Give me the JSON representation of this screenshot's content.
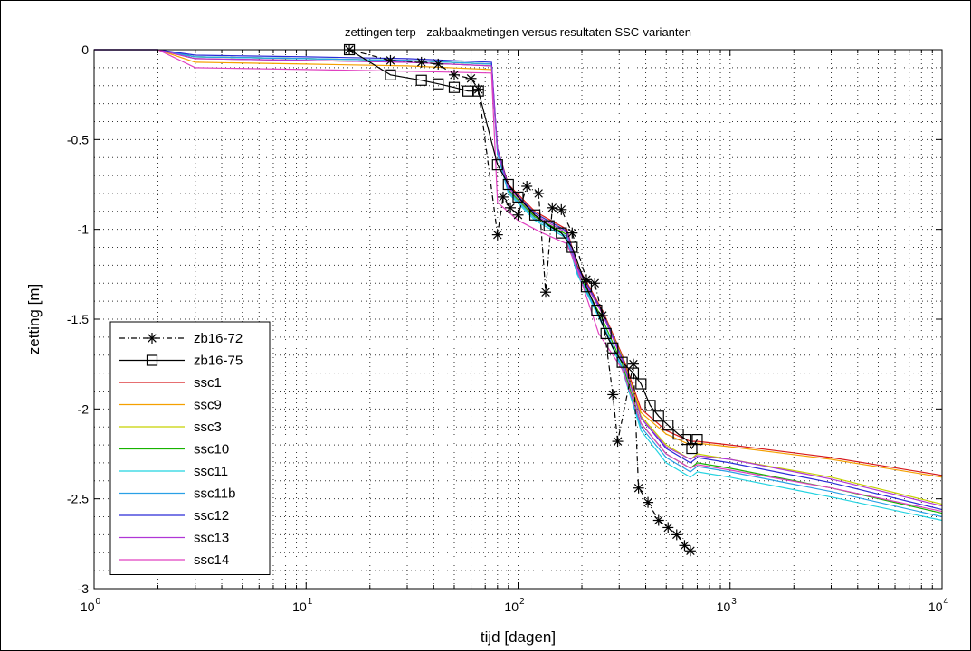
{
  "chart_data": {
    "type": "line",
    "title": "zettingen terp - zakbaakmetingen versus resultaten SSC-varianten",
    "xlabel": "tijd [dagen]",
    "ylabel": "zetting [m]",
    "xscale": "log",
    "xlim": [
      1,
      10000
    ],
    "ylim": [
      -3,
      0
    ],
    "grid": true,
    "legend": "bottom-left",
    "x_ticks": [
      {
        "base": "10",
        "exp": "0"
      },
      {
        "base": "10",
        "exp": "1"
      },
      {
        "base": "10",
        "exp": "2"
      },
      {
        "base": "10",
        "exp": "3"
      },
      {
        "base": "10",
        "exp": "4"
      }
    ],
    "y_ticks": [
      "0",
      "-0.5",
      "-1",
      "-1.5",
      "-2",
      "-2.5",
      "-3"
    ],
    "series": [
      {
        "name": "zb16-72",
        "color": "#000000",
        "marker": "star",
        "dash": "dashdot",
        "points": [
          [
            16,
            0
          ],
          [
            25,
            -0.06
          ],
          [
            35,
            -0.07
          ],
          [
            42,
            -0.08
          ],
          [
            50,
            -0.14
          ],
          [
            60,
            -0.16
          ],
          [
            65,
            -0.22
          ],
          [
            80,
            -1.03
          ],
          [
            85,
            -0.82
          ],
          [
            92,
            -0.88
          ],
          [
            100,
            -0.92
          ],
          [
            110,
            -0.76
          ],
          [
            125,
            -0.8
          ],
          [
            135,
            -1.35
          ],
          [
            145,
            -0.88
          ],
          [
            160,
            -0.89
          ],
          [
            180,
            -1.02
          ],
          [
            210,
            -1.28
          ],
          [
            230,
            -1.3
          ],
          [
            250,
            -1.48
          ],
          [
            280,
            -1.92
          ],
          [
            295,
            -2.18
          ],
          [
            350,
            -1.75
          ],
          [
            370,
            -2.44
          ],
          [
            410,
            -2.52
          ],
          [
            460,
            -2.62
          ],
          [
            510,
            -2.66
          ],
          [
            560,
            -2.7
          ],
          [
            610,
            -2.76
          ],
          [
            650,
            -2.79
          ]
        ]
      },
      {
        "name": "zb16-75",
        "color": "#000000",
        "marker": "square",
        "dash": "solid",
        "points": [
          [
            16,
            0
          ],
          [
            25,
            -0.14
          ],
          [
            35,
            -0.17
          ],
          [
            42,
            -0.19
          ],
          [
            50,
            -0.21
          ],
          [
            58,
            -0.23
          ],
          [
            65,
            -0.23
          ],
          [
            80,
            -0.64
          ],
          [
            90,
            -0.75
          ],
          [
            100,
            -0.82
          ],
          [
            120,
            -0.92
          ],
          [
            140,
            -0.98
          ],
          [
            160,
            -1.02
          ],
          [
            180,
            -1.1
          ],
          [
            210,
            -1.32
          ],
          [
            235,
            -1.45
          ],
          [
            260,
            -1.58
          ],
          [
            280,
            -1.66
          ],
          [
            310,
            -1.74
          ],
          [
            350,
            -1.8
          ],
          [
            380,
            -1.86
          ],
          [
            420,
            -1.98
          ],
          [
            460,
            -2.04
          ],
          [
            510,
            -2.09
          ],
          [
            570,
            -2.14
          ],
          [
            620,
            -2.17
          ],
          [
            660,
            -2.22
          ],
          [
            700,
            -2.17
          ]
        ]
      },
      {
        "name": "ssc1",
        "color": "#d7191c",
        "dash": "solid",
        "points": [
          [
            1,
            0
          ],
          [
            2,
            0
          ],
          [
            3,
            -0.05
          ],
          [
            10,
            -0.06
          ],
          [
            30,
            -0.07
          ],
          [
            75,
            -0.09
          ],
          [
            80,
            -0.55
          ],
          [
            90,
            -0.75
          ],
          [
            120,
            -0.9
          ],
          [
            170,
            -1.0
          ],
          [
            190,
            -1.2
          ],
          [
            250,
            -1.45
          ],
          [
            310,
            -1.7
          ],
          [
            380,
            -2.0
          ],
          [
            500,
            -2.12
          ],
          [
            650,
            -2.18
          ],
          [
            700,
            -2.18
          ],
          [
            1000,
            -2.2
          ],
          [
            3000,
            -2.27
          ],
          [
            10000,
            -2.37
          ]
        ]
      },
      {
        "name": "ssc9",
        "color": "#f5a000",
        "dash": "solid",
        "points": [
          [
            1,
            0
          ],
          [
            2,
            0
          ],
          [
            3,
            -0.07
          ],
          [
            10,
            -0.08
          ],
          [
            30,
            -0.09
          ],
          [
            75,
            -0.11
          ],
          [
            80,
            -0.57
          ],
          [
            90,
            -0.78
          ],
          [
            120,
            -0.93
          ],
          [
            170,
            -1.03
          ],
          [
            190,
            -1.22
          ],
          [
            250,
            -1.47
          ],
          [
            310,
            -1.72
          ],
          [
            380,
            -2.02
          ],
          [
            500,
            -2.14
          ],
          [
            650,
            -2.2
          ],
          [
            700,
            -2.19
          ],
          [
            1000,
            -2.21
          ],
          [
            3000,
            -2.28
          ],
          [
            10000,
            -2.38
          ]
        ]
      },
      {
        "name": "ssc3",
        "color": "#c6d200",
        "dash": "solid",
        "points": [
          [
            1,
            0
          ],
          [
            2,
            0
          ],
          [
            3,
            -0.04
          ],
          [
            10,
            -0.05
          ],
          [
            30,
            -0.06
          ],
          [
            75,
            -0.08
          ],
          [
            80,
            -0.56
          ],
          [
            90,
            -0.76
          ],
          [
            120,
            -0.91
          ],
          [
            170,
            -1.01
          ],
          [
            190,
            -1.21
          ],
          [
            250,
            -1.46
          ],
          [
            310,
            -1.71
          ],
          [
            380,
            -2.04
          ],
          [
            500,
            -2.2
          ],
          [
            650,
            -2.28
          ],
          [
            700,
            -2.25
          ],
          [
            1000,
            -2.28
          ],
          [
            3000,
            -2.38
          ],
          [
            10000,
            -2.53
          ]
        ]
      },
      {
        "name": "ssc10",
        "color": "#17b300",
        "dash": "solid",
        "points": [
          [
            1,
            0
          ],
          [
            2,
            0
          ],
          [
            3,
            -0.04
          ],
          [
            10,
            -0.05
          ],
          [
            30,
            -0.06
          ],
          [
            75,
            -0.08
          ],
          [
            80,
            -0.57
          ],
          [
            90,
            -0.78
          ],
          [
            120,
            -0.93
          ],
          [
            170,
            -1.03
          ],
          [
            190,
            -1.23
          ],
          [
            250,
            -1.5
          ],
          [
            310,
            -1.75
          ],
          [
            380,
            -2.08
          ],
          [
            500,
            -2.25
          ],
          [
            650,
            -2.33
          ],
          [
            700,
            -2.3
          ],
          [
            1000,
            -2.33
          ],
          [
            3000,
            -2.44
          ],
          [
            10000,
            -2.58
          ]
        ]
      },
      {
        "name": "ssc11",
        "color": "#22d3e0",
        "dash": "solid",
        "points": [
          [
            1,
            0
          ],
          [
            2,
            0
          ],
          [
            3,
            -0.04
          ],
          [
            10,
            -0.05
          ],
          [
            30,
            -0.06
          ],
          [
            75,
            -0.08
          ],
          [
            80,
            -0.58
          ],
          [
            90,
            -0.8
          ],
          [
            120,
            -0.95
          ],
          [
            170,
            -1.05
          ],
          [
            190,
            -1.25
          ],
          [
            250,
            -1.53
          ],
          [
            310,
            -1.78
          ],
          [
            380,
            -2.12
          ],
          [
            500,
            -2.3
          ],
          [
            650,
            -2.38
          ],
          [
            700,
            -2.35
          ],
          [
            1000,
            -2.38
          ],
          [
            3000,
            -2.49
          ],
          [
            10000,
            -2.62
          ]
        ]
      },
      {
        "name": "ssc11b",
        "color": "#2aa0e6",
        "dash": "solid",
        "points": [
          [
            1,
            0
          ],
          [
            2,
            0
          ],
          [
            3,
            -0.04
          ],
          [
            10,
            -0.05
          ],
          [
            30,
            -0.06
          ],
          [
            75,
            -0.08
          ],
          [
            80,
            -0.58
          ],
          [
            90,
            -0.79
          ],
          [
            120,
            -0.94
          ],
          [
            170,
            -1.04
          ],
          [
            190,
            -1.24
          ],
          [
            250,
            -1.52
          ],
          [
            310,
            -1.77
          ],
          [
            380,
            -2.1
          ],
          [
            500,
            -2.27
          ],
          [
            650,
            -2.35
          ],
          [
            700,
            -2.32
          ],
          [
            1000,
            -2.35
          ],
          [
            3000,
            -2.46
          ],
          [
            10000,
            -2.6
          ]
        ]
      },
      {
        "name": "ssc12",
        "color": "#2b2bd6",
        "dash": "solid",
        "points": [
          [
            1,
            0
          ],
          [
            2,
            0
          ],
          [
            3,
            -0.03
          ],
          [
            10,
            -0.04
          ],
          [
            30,
            -0.05
          ],
          [
            75,
            -0.07
          ],
          [
            80,
            -0.55
          ],
          [
            90,
            -0.76
          ],
          [
            120,
            -0.91
          ],
          [
            170,
            -1.01
          ],
          [
            190,
            -1.21
          ],
          [
            250,
            -1.46
          ],
          [
            310,
            -1.72
          ],
          [
            380,
            -2.05
          ],
          [
            500,
            -2.22
          ],
          [
            650,
            -2.3
          ],
          [
            700,
            -2.27
          ],
          [
            1000,
            -2.3
          ],
          [
            3000,
            -2.41
          ],
          [
            10000,
            -2.56
          ]
        ]
      },
      {
        "name": "ssc13",
        "color": "#b036d6",
        "dash": "solid",
        "points": [
          [
            1,
            0
          ],
          [
            2,
            0
          ],
          [
            3,
            -0.05
          ],
          [
            10,
            -0.06
          ],
          [
            30,
            -0.07
          ],
          [
            75,
            -0.09
          ],
          [
            80,
            -0.56
          ],
          [
            90,
            -0.77
          ],
          [
            120,
            -0.92
          ],
          [
            170,
            -1.02
          ],
          [
            190,
            -1.22
          ],
          [
            250,
            -1.47
          ],
          [
            310,
            -1.73
          ],
          [
            380,
            -2.05
          ],
          [
            500,
            -2.21
          ],
          [
            650,
            -2.28
          ],
          [
            700,
            -2.26
          ],
          [
            1000,
            -2.28
          ],
          [
            3000,
            -2.39
          ],
          [
            10000,
            -2.54
          ]
        ]
      },
      {
        "name": "ssc14",
        "color": "#e040c0",
        "dash": "solid",
        "points": [
          [
            1,
            0
          ],
          [
            2,
            0
          ],
          [
            3,
            -0.1
          ],
          [
            10,
            -0.11
          ],
          [
            30,
            -0.12
          ],
          [
            75,
            -0.13
          ],
          [
            80,
            -0.85
          ],
          [
            100,
            -0.95
          ],
          [
            130,
            -1.02
          ],
          [
            170,
            -1.08
          ],
          [
            190,
            -1.22
          ],
          [
            240,
            -1.58
          ],
          [
            310,
            -1.78
          ],
          [
            380,
            -2.08
          ],
          [
            500,
            -2.25
          ],
          [
            650,
            -2.33
          ],
          [
            700,
            -2.31
          ],
          [
            1000,
            -2.34
          ],
          [
            3000,
            -2.44
          ],
          [
            10000,
            -2.57
          ]
        ]
      }
    ]
  }
}
